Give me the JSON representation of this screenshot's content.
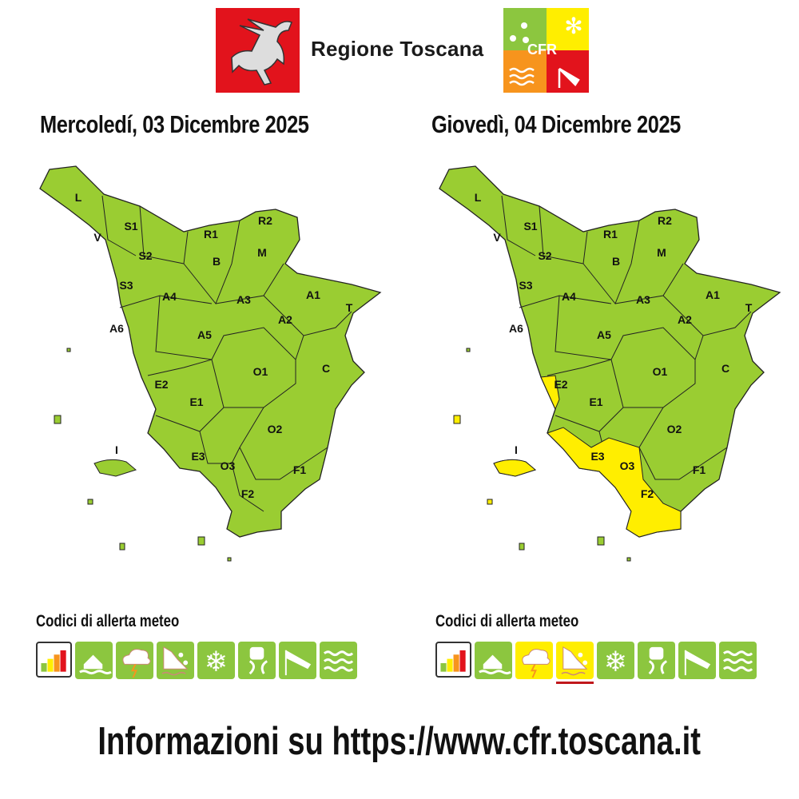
{
  "header": {
    "region_name": "Regione Toscana",
    "logo_cfr_text": "CFR",
    "logo_region_icon": "pegasus-icon"
  },
  "colors": {
    "green": "#8cc63f",
    "yellow": "#ffee00",
    "red": "#e2131c",
    "orange": "#f7941d"
  },
  "maps": [
    {
      "date": "Mercoledí, 03 Dicembre 2025",
      "zones": [
        "L",
        "S1",
        "V",
        "R1",
        "R2",
        "S2",
        "B",
        "M",
        "S3",
        "A4",
        "A3",
        "A1",
        "T",
        "A6",
        "A2",
        "A5",
        "E2",
        "O1",
        "C",
        "E1",
        "O2",
        "I",
        "E3",
        "O3",
        "F1",
        "F2"
      ],
      "yellow_zones": []
    },
    {
      "date": "Giovedì, 04 Dicembre 2025",
      "zones": [
        "L",
        "S1",
        "V",
        "R1",
        "R2",
        "S2",
        "B",
        "M",
        "S3",
        "A4",
        "A3",
        "A1",
        "T",
        "A6",
        "A2",
        "A5",
        "E2",
        "O1",
        "C",
        "E1",
        "O2",
        "I",
        "E3",
        "O3",
        "F1",
        "F2"
      ],
      "yellow_zones": [
        "E2",
        "E3",
        "O3",
        "F2",
        "I"
      ]
    }
  ],
  "legends": [
    {
      "title": "Codici di allerta meteo",
      "icons": [
        {
          "name": "alert-levels-icon",
          "level": "legend"
        },
        {
          "name": "hydraulic-flood-icon",
          "level": "green"
        },
        {
          "name": "thunderstorm-icon",
          "level": "green"
        },
        {
          "name": "landslide-icon",
          "level": "green"
        },
        {
          "name": "snow-icon",
          "level": "green"
        },
        {
          "name": "ice-road-icon",
          "level": "green"
        },
        {
          "name": "wind-icon",
          "level": "green"
        },
        {
          "name": "sea-storm-icon",
          "level": "green"
        }
      ]
    },
    {
      "title": "Codici di allerta meteo",
      "icons": [
        {
          "name": "alert-levels-icon",
          "level": "legend"
        },
        {
          "name": "hydraulic-flood-icon",
          "level": "green"
        },
        {
          "name": "thunderstorm-icon",
          "level": "yellow"
        },
        {
          "name": "landslide-icon",
          "level": "yellow",
          "underlined": true
        },
        {
          "name": "snow-icon",
          "level": "green"
        },
        {
          "name": "ice-road-icon",
          "level": "green"
        },
        {
          "name": "wind-icon",
          "level": "green"
        },
        {
          "name": "sea-storm-icon",
          "level": "green"
        }
      ]
    }
  ],
  "footer": {
    "text": "Informazioni su https://www.cfr.toscana.it"
  }
}
